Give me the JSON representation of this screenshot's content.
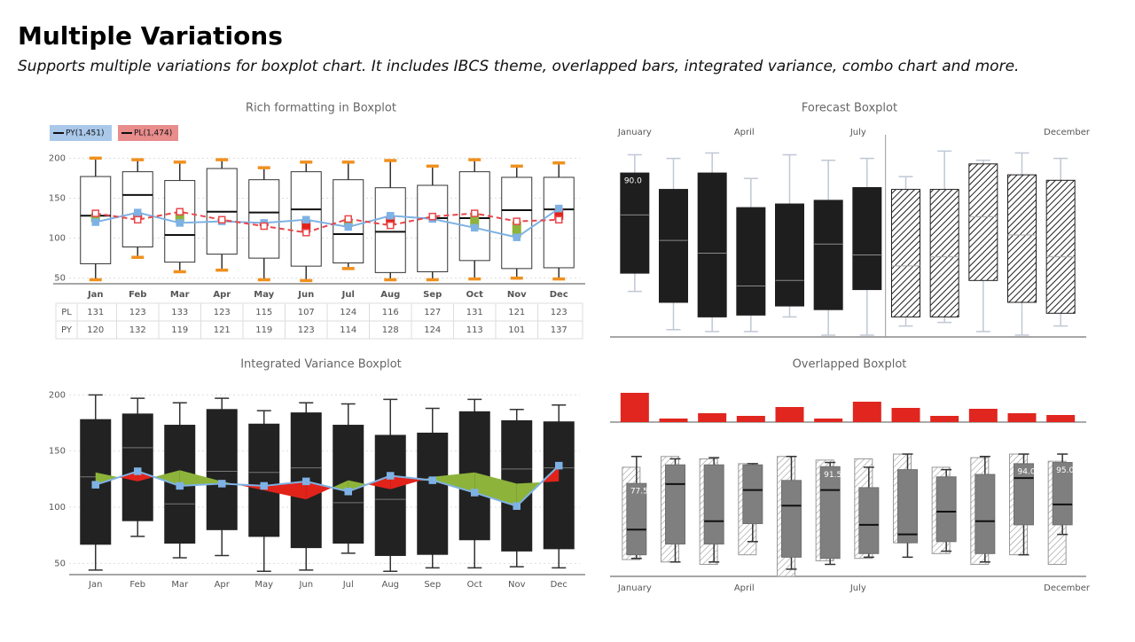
{
  "title": "Multiple Variations",
  "subtitle": "Supports multiple variations for boxplot chart. It includes IBCS theme, overlapped bars, integrated variance, combo chart and more.",
  "chart_data": [
    {
      "type": "boxplot",
      "title": "Rich formatting in Boxplot",
      "categories": [
        "Jan",
        "Feb",
        "Mar",
        "Apr",
        "May",
        "Jun",
        "Jul",
        "Aug",
        "Sep",
        "Oct",
        "Nov",
        "Dec"
      ],
      "ylim": [
        43,
        207
      ],
      "yticks": [
        50,
        100,
        150,
        200
      ],
      "grid": true,
      "box_fill": "#ffffff",
      "box_stroke": "#333333",
      "median_color": "#111111",
      "whisker_color": "#333333",
      "cap_color": "#f0901e",
      "boxes": {
        "min": [
          48,
          76,
          58,
          60,
          48,
          47,
          62,
          48,
          48,
          49,
          50,
          49
        ],
        "q1": [
          68,
          89,
          70,
          80,
          75,
          65,
          69,
          57,
          58,
          72,
          62,
          63
        ],
        "median": [
          128,
          154,
          104,
          133,
          132,
          136,
          105,
          108,
          125,
          125,
          135,
          136
        ],
        "q3": [
          177,
          183,
          172,
          187,
          173,
          183,
          173,
          163,
          166,
          183,
          176,
          176
        ],
        "max": [
          200,
          198,
          195,
          198,
          188,
          195,
          195,
          197,
          190,
          198,
          190,
          194
        ]
      },
      "series": [
        {
          "name": "PY",
          "legend": "PY(1,451)",
          "color": "#7eb2e4",
          "legend_color": "#a9c8ea",
          "show_line": true,
          "dashed": false,
          "values": [
            120,
            132,
            119,
            121,
            119,
            123,
            114,
            128,
            124,
            113,
            101,
            137
          ]
        },
        {
          "name": "PL",
          "legend": "PL(1,474)",
          "color": "#e8474c",
          "legend_color": "#e88c8c",
          "show_line": true,
          "dashed": true,
          "values": [
            131,
            123,
            133,
            123,
            115,
            107,
            124,
            116,
            127,
            131,
            121,
            123
          ]
        }
      ],
      "variance": {
        "style": "bars",
        "positive_color": "#8db33a",
        "negative_color": "#e2231a"
      },
      "table": true
    },
    {
      "type": "boxplot",
      "title": "Forecast Boxplot",
      "categories": [
        "January",
        null,
        null,
        "April",
        null,
        null,
        "July",
        null,
        null,
        null,
        null,
        "December"
      ],
      "ylim": [
        0,
        110
      ],
      "box_fill": "#1e1e1e",
      "box_stroke": "#1e1e1e",
      "median_color": "#8a8a8a",
      "whisker_color": "#c0c8d4",
      "cap_color": "#c0c8d4",
      "hatch": [
        false,
        false,
        false,
        false,
        false,
        false,
        false,
        true,
        true,
        true,
        true,
        true
      ],
      "boxes": {
        "min": [
          25,
          4,
          3,
          3,
          11,
          1,
          1,
          6,
          8,
          3,
          1,
          6
        ],
        "q1": [
          35,
          19,
          11,
          12,
          17,
          15,
          26,
          11,
          11,
          31,
          19,
          13
        ],
        "median": [
          67,
          53,
          46,
          28,
          31,
          51,
          45,
          39,
          44,
          66,
          56,
          44
        ],
        "q3": [
          90,
          81,
          90,
          71,
          73,
          75,
          82,
          81,
          81,
          95,
          89,
          86
        ],
        "max": [
          100,
          98,
          101,
          87,
          100,
          97,
          98,
          88,
          102,
          97,
          101,
          98
        ],
        "q3_labels": [
          "90.0",
          null,
          null,
          null,
          null,
          null,
          null,
          null,
          null,
          null,
          null,
          null
        ]
      }
    },
    {
      "type": "boxplot",
      "title": "Integrated Variance Boxplot",
      "categories": [
        "Jan",
        "Feb",
        "Mar",
        "Apr",
        "May",
        "Jun",
        "Jul",
        "Aug",
        "Sep",
        "Oct",
        "Nov",
        "Dec"
      ],
      "ylim": [
        40,
        205
      ],
      "yticks": [
        50,
        100,
        150,
        200
      ],
      "grid": true,
      "box_fill": "#222222",
      "box_stroke": "#222222",
      "median_color": "#777777",
      "whisker_color": "#333333",
      "cap_color": "#333333",
      "boxes": {
        "min": [
          44,
          74,
          55,
          57,
          43,
          44,
          59,
          43,
          46,
          46,
          47,
          46
        ],
        "q1": [
          67,
          88,
          68,
          80,
          74,
          64,
          68,
          57,
          58,
          71,
          61,
          63
        ],
        "median": [
          127,
          153,
          103,
          132,
          131,
          135,
          104,
          107,
          124,
          124,
          134,
          135
        ],
        "q3": [
          178,
          183,
          173,
          187,
          174,
          184,
          173,
          164,
          166,
          185,
          177,
          176
        ],
        "max": [
          200,
          197,
          193,
          197,
          186,
          193,
          192,
          196,
          188,
          196,
          187,
          191
        ]
      },
      "series": [
        {
          "name": "PY",
          "color": "#7eb2e4",
          "show_line": true,
          "dashed": false,
          "values": [
            120,
            132,
            119,
            121,
            119,
            123,
            114,
            128,
            124,
            113,
            101,
            137
          ]
        },
        {
          "name": "PL",
          "color": "#e8474c",
          "show_line": false,
          "dashed": false,
          "values": [
            131,
            123,
            133,
            123,
            115,
            107,
            124,
            116,
            127,
            131,
            121,
            123
          ]
        }
      ],
      "variance": {
        "style": "area",
        "positive_color": "#8db33a",
        "negative_color": "#e2231a"
      }
    },
    {
      "type": "boxplot",
      "title": "Overlapped Boxplot",
      "categories": [
        "January",
        null,
        null,
        "April",
        null,
        null,
        "July",
        null,
        null,
        null,
        null,
        "December"
      ],
      "ylim": [
        0,
        105
      ],
      "box_fill": "#7f7f7f",
      "box_stroke": "#6f6f6f",
      "median_color": "#111111",
      "whisker_color": "#333333",
      "cap_color": "#333333",
      "boxes": {
        "min": [
          15,
          12,
          12,
          29,
          6,
          10,
          16,
          16,
          21,
          12,
          18,
          35
        ],
        "q1": [
          18,
          27,
          27,
          44,
          16,
          15,
          19,
          28,
          29,
          19,
          43,
          43
        ],
        "median": [
          39,
          77,
          46,
          72,
          59,
          72,
          43,
          35,
          54,
          46,
          82,
          60
        ],
        "q3": [
          77.5,
          93,
          93,
          93,
          80,
          91.5,
          74,
          89,
          83,
          85,
          94,
          95
        ],
        "max": [
          100,
          98,
          99,
          94,
          100,
          95,
          91,
          102,
          89,
          100,
          102,
          102
        ],
        "q3_labels": [
          "77.5",
          null,
          null,
          null,
          null,
          "91.5",
          null,
          null,
          null,
          null,
          "94.0",
          "95.0"
        ]
      },
      "overlap_boxes": {
        "q1": [
          14,
          12,
          10,
          18,
          0,
          13,
          15,
          28,
          19,
          10,
          18,
          10
        ],
        "q3": [
          91,
          100,
          98,
          94,
          100,
          97,
          98,
          102,
          91,
          99,
          102,
          96
        ]
      },
      "bars": {
        "color": "#e0261f",
        "ylim": [
          0,
          36
        ],
        "values": [
          33,
          4,
          10,
          7,
          17,
          4,
          23,
          16,
          7,
          15,
          10,
          8
        ]
      }
    }
  ]
}
